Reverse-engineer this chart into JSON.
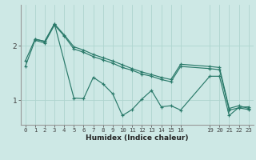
{
  "xlabel": "Humidex (Indice chaleur)",
  "bg_color": "#cde8e5",
  "line_color": "#2a7a6a",
  "grid_color": "#aed4cf",
  "axis_color": "#999999",
  "xlim": [
    -0.5,
    23.5
  ],
  "ylim": [
    0.55,
    2.75
  ],
  "yticks": [
    1,
    2
  ],
  "xticks": [
    0,
    1,
    2,
    3,
    4,
    5,
    6,
    7,
    8,
    9,
    10,
    11,
    12,
    13,
    14,
    15,
    16,
    19,
    20,
    21,
    22,
    23
  ],
  "series": [
    {
      "x": [
        0,
        1,
        2,
        3,
        4,
        5,
        6,
        7,
        8,
        9,
        10,
        11,
        12,
        13,
        14,
        15,
        16,
        19,
        20,
        21,
        22,
        23
      ],
      "y": [
        1.72,
        2.12,
        2.08,
        2.4,
        2.2,
        1.98,
        1.92,
        1.84,
        1.78,
        1.72,
        1.65,
        1.58,
        1.52,
        1.47,
        1.42,
        1.38,
        1.66,
        1.62,
        1.6,
        0.85,
        0.9,
        0.85
      ]
    },
    {
      "x": [
        0,
        1,
        2,
        3,
        4,
        5,
        6,
        7,
        8,
        9,
        10,
        11,
        12,
        13,
        14,
        15,
        16,
        19,
        20,
        21,
        22,
        23
      ],
      "y": [
        1.62,
        2.1,
        2.05,
        2.38,
        2.18,
        1.94,
        1.88,
        1.8,
        1.74,
        1.68,
        1.6,
        1.55,
        1.48,
        1.44,
        1.38,
        1.34,
        1.62,
        1.58,
        1.56,
        0.82,
        0.86,
        0.83
      ]
    },
    {
      "x": [
        1,
        2,
        3,
        5,
        6,
        7,
        8,
        9,
        10,
        11,
        12,
        13,
        14,
        15,
        16,
        19,
        20,
        21,
        22,
        23
      ],
      "y": [
        2.12,
        2.08,
        2.4,
        1.04,
        1.03,
        1.42,
        1.3,
        1.12,
        0.72,
        0.83,
        1.02,
        1.18,
        0.88,
        0.9,
        0.82,
        1.44,
        1.44,
        0.72,
        0.87,
        0.88
      ]
    }
  ]
}
